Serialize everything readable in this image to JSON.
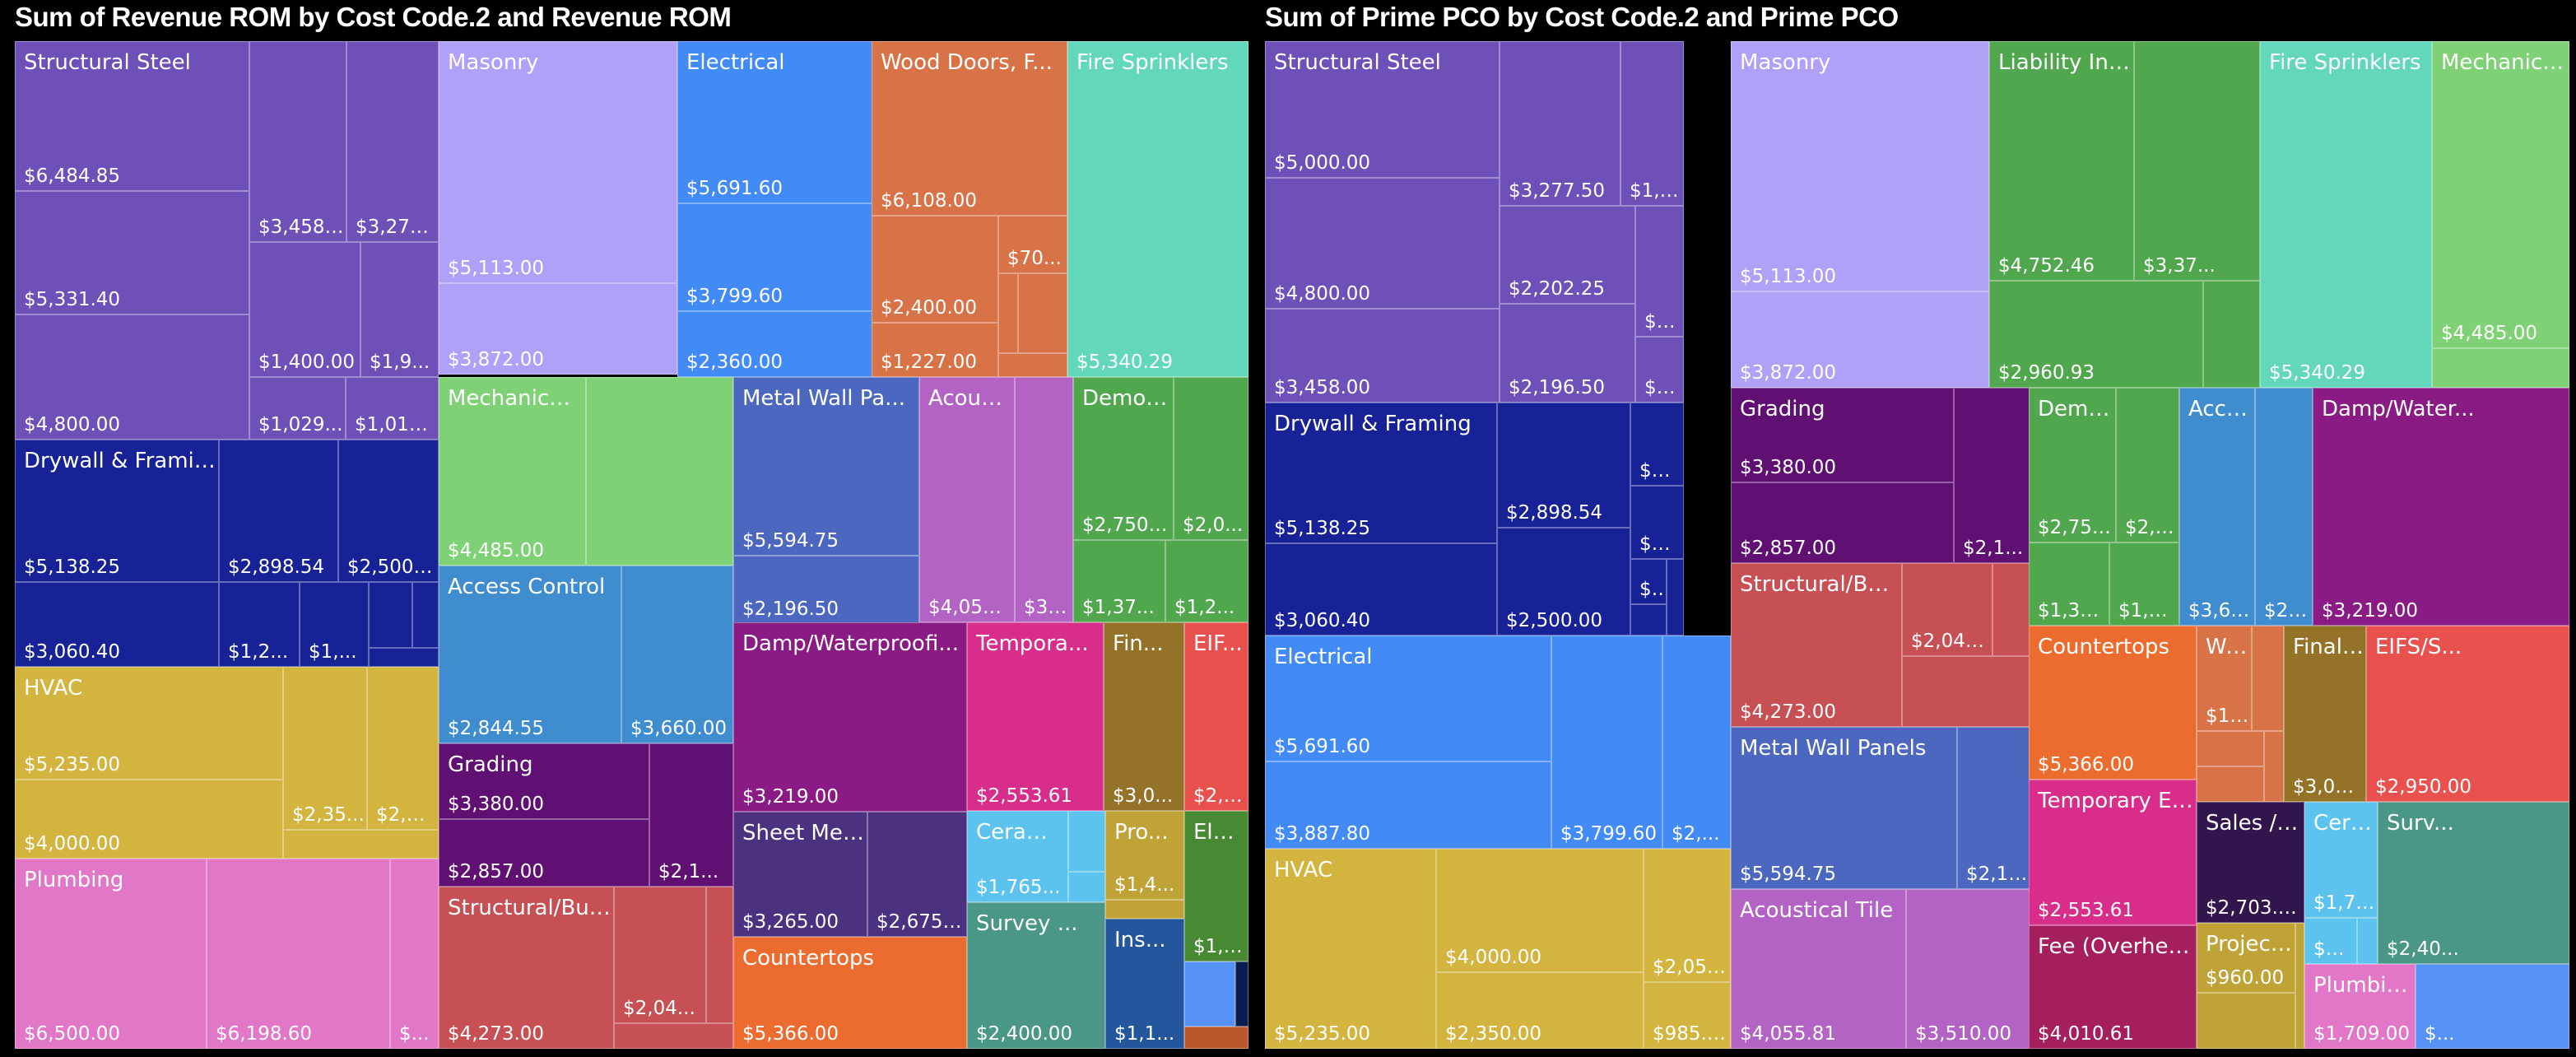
{
  "chart_data": [
    {
      "type": "treemap",
      "title": "Sum of Revenue ROM by Cost Code.2 and Revenue ROM",
      "groups": [
        {
          "name": "Structural Steel",
          "color": "#6E50B8",
          "values": [
            "$6,484.85",
            "$5,331.40",
            "$4,800.00",
            "$3,458....",
            "$3,277...",
            "$1,400.00",
            "$1,9...",
            "$1,029...",
            "$1,012..."
          ]
        },
        {
          "name": "Drywall & Framing",
          "color": "#162296",
          "values": [
            "$5,138.25",
            "$3,060.40",
            "$2,898.54",
            "$2,500....",
            "$1,2...",
            "$1,...",
            "",
            "",
            ""
          ]
        },
        {
          "name": "HVAC",
          "color": "#D2B43E",
          "values": [
            "$5,235.00",
            "$4,000.00",
            "$2,35...",
            "$2,0...",
            ""
          ]
        },
        {
          "name": "Plumbing",
          "color": "#E277C8",
          "values": [
            "$6,500.00",
            "$6,198.60",
            "$..."
          ]
        },
        {
          "name": "Masonry",
          "color": "#B0A0F7",
          "values": [
            "$5,113.00",
            "$3,872.00"
          ]
        },
        {
          "name": "Electrical",
          "color": "#428BF7",
          "values": [
            "$5,691.60",
            "$3,799.60",
            "$2,360.00"
          ]
        },
        {
          "name": "Wood Doors, F...",
          "color": "#D87348",
          "values": [
            "$6,108.00",
            "$2,400.00",
            "$1,227.00",
            "$70...",
            "",
            "",
            ""
          ]
        },
        {
          "name": "Fire Sprinklers",
          "color": "#63D7BB",
          "values": [
            "$5,340.29"
          ]
        },
        {
          "name": "Mechanical Controls",
          "color": "#7ED275",
          "values": [
            "$4,485.00",
            ""
          ]
        },
        {
          "name": "Access Control",
          "color": "#3F8DCE",
          "values": [
            "$2,844.55",
            "$3,660.00"
          ]
        },
        {
          "name": "Grading",
          "color": "#600F72",
          "values": [
            "$3,380.00",
            "$2,857.00",
            "$2,1..."
          ]
        },
        {
          "name": "Structural/Building Concr...",
          "color": "#C75055",
          "values": [
            "$4,273.00",
            "$2,04...",
            "",
            ""
          ]
        },
        {
          "name": "Metal Wall Pa...",
          "color": "#4C67BF",
          "values": [
            "$5,594.75",
            "$2,196.50"
          ]
        },
        {
          "name": "Acoustical Tile",
          "color": "#B263C3",
          "values": [
            "$4,055...",
            "$3,5..."
          ]
        },
        {
          "name": "Demolition",
          "color": "#50A74E",
          "values": [
            "$2,750....",
            "$2,0...",
            "$1,37...",
            "$1,2..."
          ]
        },
        {
          "name": "Damp/Waterproofi...",
          "color": "#8A1A84",
          "values": [
            "$3,219.00"
          ]
        },
        {
          "name": "Sheet Metal Roofing",
          "color": "#4B3180",
          "values": [
            "$3,265.00",
            "$2,675.00"
          ]
        },
        {
          "name": "Countertops",
          "color": "#EC6C2F",
          "values": [
            "$5,366.00"
          ]
        },
        {
          "name": "Tempora...",
          "color": "#D82D8A",
          "values": [
            "$2,553.61"
          ]
        },
        {
          "name": "Fin...",
          "color": "#947228",
          "values": [
            "$3,0..."
          ]
        },
        {
          "name": "EIF...",
          "color": "#E9514E",
          "values": [
            "$2,9..."
          ]
        },
        {
          "name": "Ceramic ...",
          "color": "#5BC3EE",
          "values": [
            "$1,765...",
            "",
            ""
          ]
        },
        {
          "name": "Pro...",
          "color": "#C0A337",
          "values": [
            "$1,4...",
            ""
          ]
        },
        {
          "name": "Ele...",
          "color": "#478A33",
          "values": [
            "$1,6..."
          ]
        },
        {
          "name": "Survey ...",
          "color": "#4A9787",
          "values": [
            "$2,400.00"
          ]
        },
        {
          "name": "Ins...",
          "color": "#24569D",
          "values": [
            "$1,1..."
          ]
        },
        {
          "name": "",
          "color": "#5691F5",
          "values": [
            ""
          ]
        },
        {
          "name": "",
          "color": "#0B1C4E",
          "values": [
            ""
          ]
        },
        {
          "name": "",
          "color": "#B9582A",
          "values": [
            ""
          ]
        }
      ]
    },
    {
      "type": "treemap",
      "title": "Sum of Prime PCO by Cost Code.2 and Prime PCO",
      "groups": [
        {
          "name": "Structural Steel",
          "color": "#6E50B8",
          "values": [
            "$5,000.00",
            "$4,800.00",
            "$3,458.00",
            "$3,277.50",
            "$1,400.00",
            "$2,202.25",
            "$2,196.50",
            "$1,918...",
            "$983.25"
          ]
        },
        {
          "name": "Drywall & Framing",
          "color": "#162296",
          "values": [
            "$5,138.25",
            "$3,060.40",
            "$2,898.54",
            "$2,500.00",
            "$1,260...",
            "$1,094...",
            "$50...",
            "",
            ""
          ]
        },
        {
          "name": "Electrical",
          "color": "#428BF7",
          "values": [
            "$5,691.60",
            "$3,887.80",
            "$3,799.60",
            "$2,..."
          ]
        },
        {
          "name": "HVAC",
          "color": "#D2B43E",
          "values": [
            "$5,235.00",
            "$4,000.00",
            "$2,350.00",
            "$2,050....",
            "$985.00"
          ]
        },
        {
          "name": "Masonry",
          "color": "#B0A0F7",
          "values": [
            "$5,113.00",
            "$3,872.00"
          ]
        },
        {
          "name": "Grading",
          "color": "#600F72",
          "values": [
            "$3,380.00",
            "$2,857.00",
            "$2,1..."
          ]
        },
        {
          "name": "Structural/Building Concr...",
          "color": "#C75055",
          "values": [
            "$4,273.00",
            "$2,040...",
            "",
            ""
          ]
        },
        {
          "name": "Metal Wall Panels",
          "color": "#4C67BF",
          "values": [
            "$5,594.75",
            "$2,19..."
          ]
        },
        {
          "name": "Acoustical Tile",
          "color": "#B263C3",
          "values": [
            "$4,055.81",
            "$3,510.00"
          ]
        },
        {
          "name": "Liability Insurance",
          "color": "#50A74E",
          "values": [
            "$4,752.46",
            "$3,37...",
            "$2,960.93",
            ""
          ]
        },
        {
          "name": "Fire Sprinklers",
          "color": "#63D7BB",
          "values": [
            "$5,340.29"
          ]
        },
        {
          "name": "Mechanical C...",
          "color": "#7ED275",
          "values": [
            "$4,485.00",
            ""
          ]
        },
        {
          "name": "Demolition",
          "color": "#50A74E",
          "values": [
            "$2,750.00",
            "$2,00...",
            "$1,375.00",
            "$1,20..."
          ]
        },
        {
          "name": "Access Control",
          "color": "#3F8DCE",
          "values": [
            "$3,660....",
            "$2,8..."
          ]
        },
        {
          "name": "Damp/Water...",
          "color": "#8A1A84",
          "values": [
            "$3,219.00"
          ]
        },
        {
          "name": "Countertops",
          "color": "#EC6C2F",
          "values": [
            "$5,366.00"
          ]
        },
        {
          "name": "Wood ...",
          "color": "#D87348",
          "values": [
            "$1,2...",
            "",
            "",
            "",
            ""
          ]
        },
        {
          "name": "Final ...",
          "color": "#947228",
          "values": [
            "$3,000.00"
          ]
        },
        {
          "name": "EIFS/S...",
          "color": "#E9514E",
          "values": [
            "$2,950.00"
          ]
        },
        {
          "name": "Temporary Electric",
          "color": "#D82D8A",
          "values": [
            "$2,553.61"
          ]
        },
        {
          "name": "Fee (Overhead/Pr...",
          "color": "#A51F5E",
          "values": [
            "$4,010.61"
          ]
        },
        {
          "name": "Sales / Us...",
          "color": "#31154C",
          "values": [
            "$2,703.46"
          ]
        },
        {
          "name": "Project M...",
          "color": "#C0A337",
          "values": [
            "$960.00",
            "",
            ""
          ]
        },
        {
          "name": "Cera...",
          "color": "#5BC3EE",
          "values": [
            "$1,765...",
            "$49...",
            ""
          ]
        },
        {
          "name": "Surv...",
          "color": "#4A9787",
          "values": [
            "$2,40..."
          ]
        },
        {
          "name": "Plumbing",
          "color": "#E277C8",
          "values": [
            "$1,709.00"
          ]
        },
        {
          "name": "",
          "color": "#5691F5",
          "values": [
            "$..."
          ]
        }
      ]
    }
  ]
}
